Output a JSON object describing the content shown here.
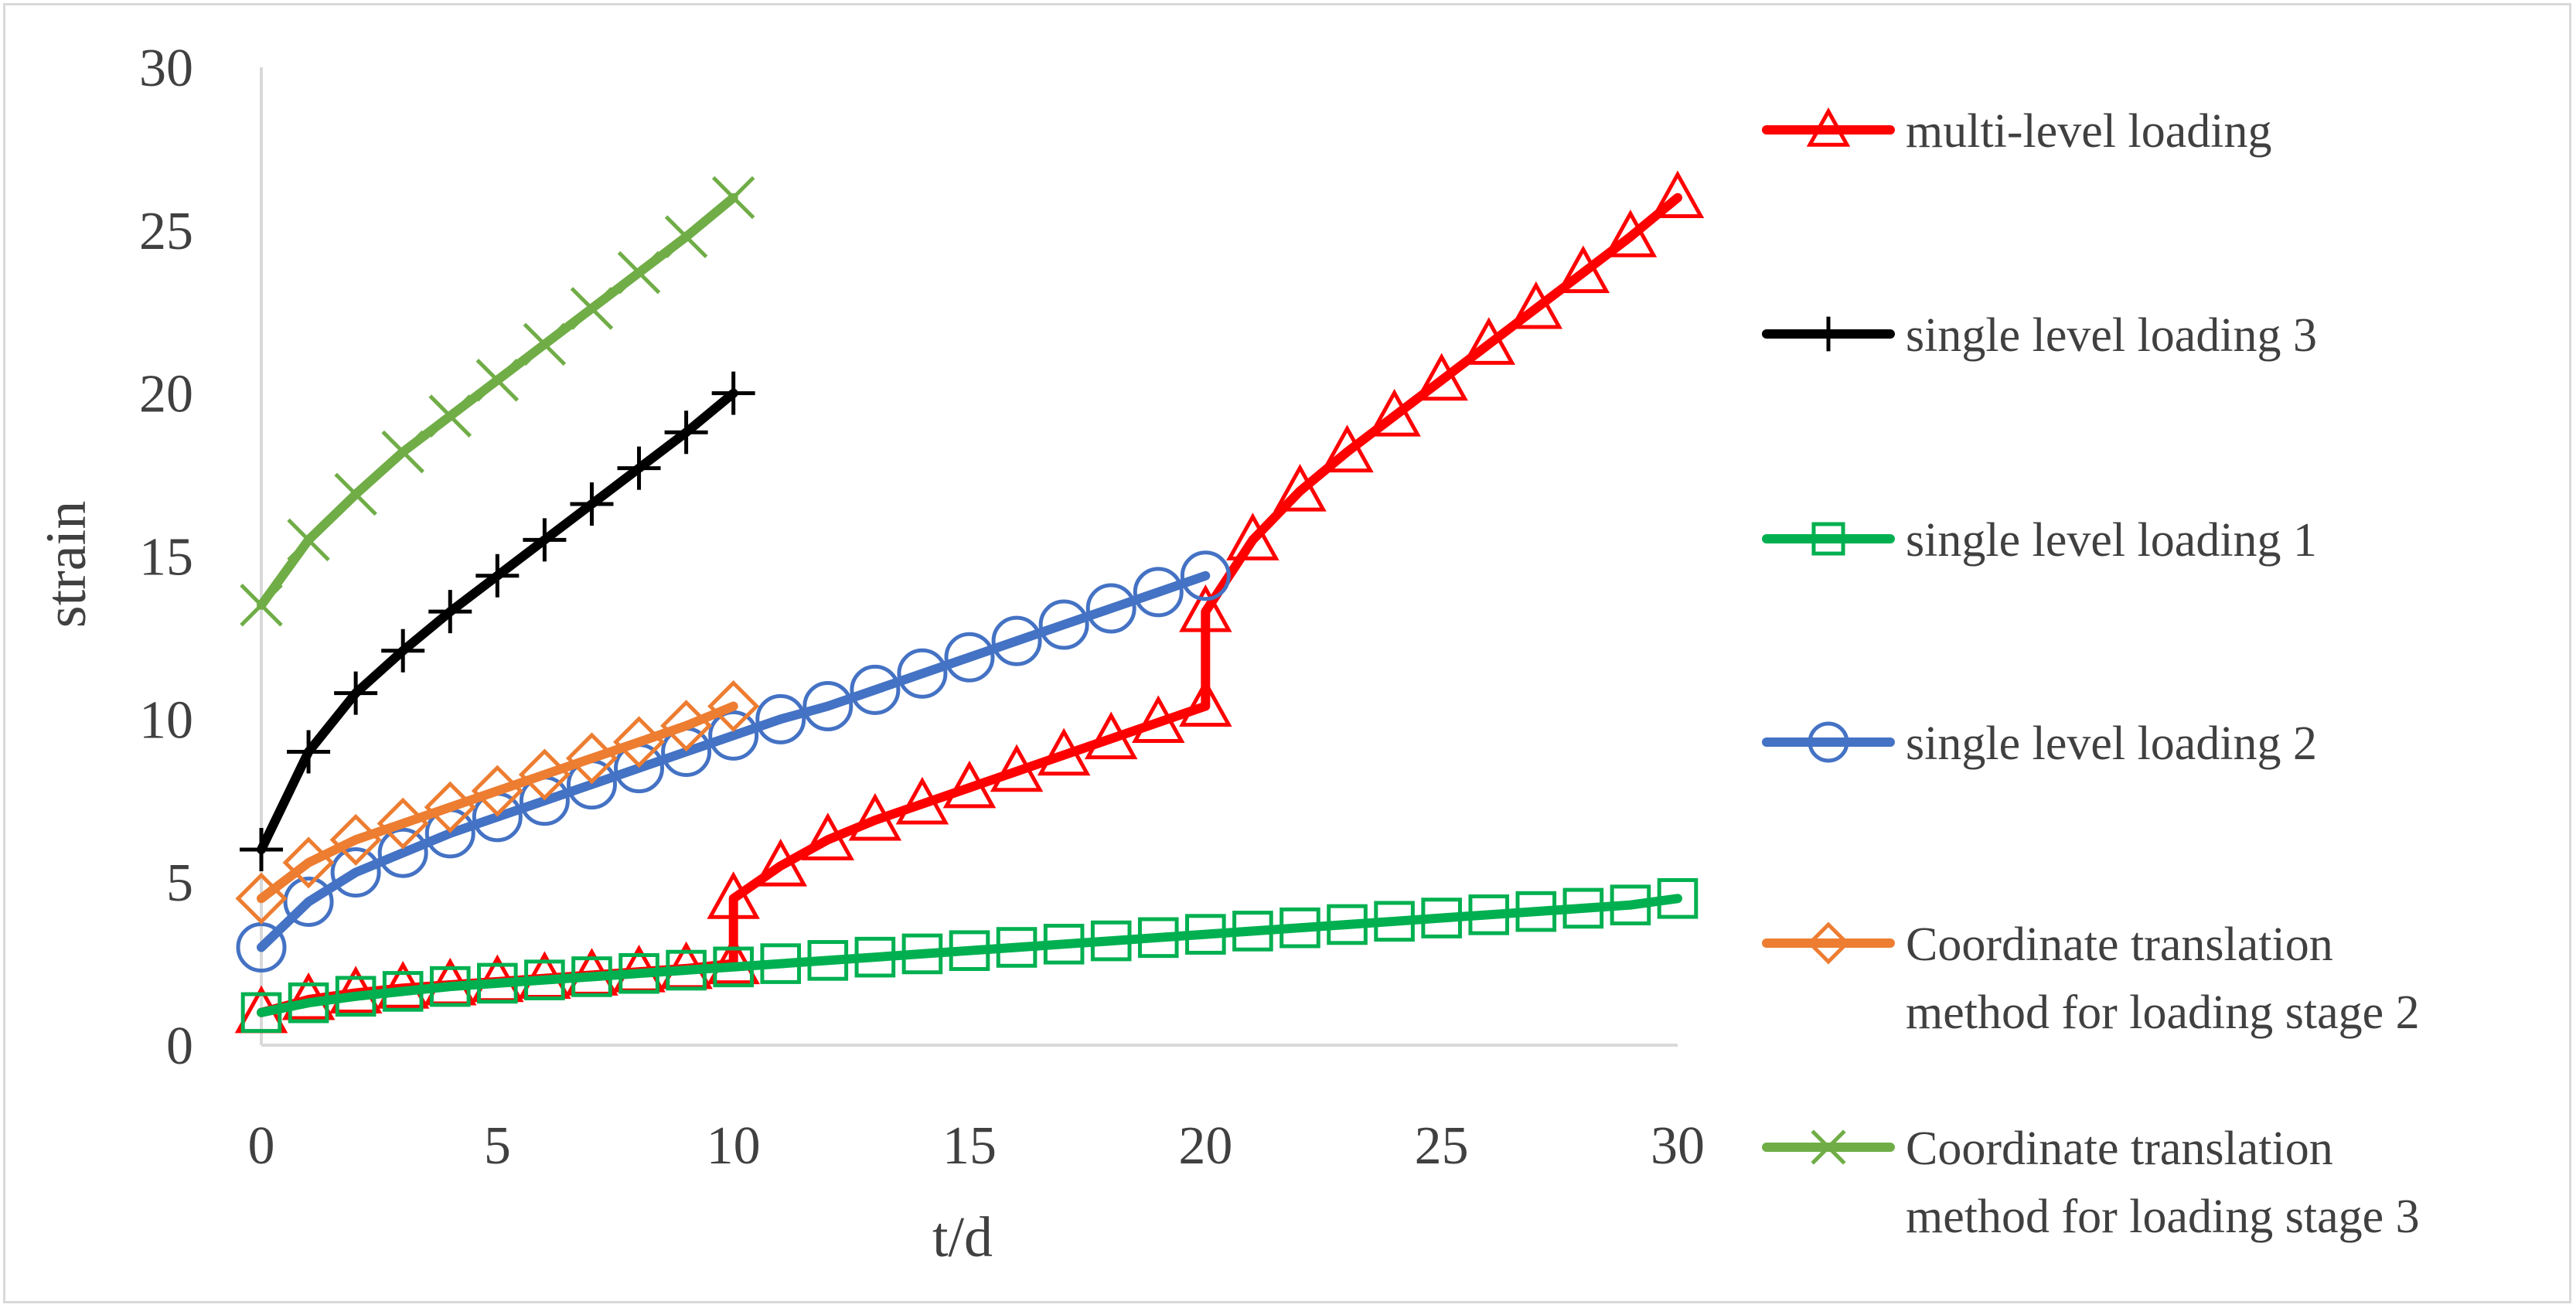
{
  "chart_data": {
    "type": "line",
    "title": "",
    "xlabel": "t/d",
    "ylabel": "strain",
    "xlim": [
      0,
      30
    ],
    "ylim": [
      0,
      30
    ],
    "x_ticks": [
      "0",
      "5",
      "10",
      "15",
      "20",
      "25",
      "30"
    ],
    "y_ticks": [
      "0",
      "5",
      "10",
      "15",
      "20",
      "25",
      "30"
    ],
    "legend_position": "right",
    "grid": false,
    "series": [
      {
        "name": "multi-level loading",
        "color": "#ff0000",
        "marker": "triangle",
        "points": [
          [
            0,
            1
          ],
          [
            1,
            1.4
          ],
          [
            2,
            1.6
          ],
          [
            3,
            1.75
          ],
          [
            4,
            1.85
          ],
          [
            5,
            1.95
          ],
          [
            6,
            2.05
          ],
          [
            7,
            2.15
          ],
          [
            8,
            2.25
          ],
          [
            9,
            2.35
          ],
          [
            10,
            2.5
          ],
          [
            10,
            4.5
          ],
          [
            11,
            5.5
          ],
          [
            12,
            6.3
          ],
          [
            13,
            6.9
          ],
          [
            14,
            7.4
          ],
          [
            15,
            7.9
          ],
          [
            16,
            8.4
          ],
          [
            17,
            8.9
          ],
          [
            18,
            9.4
          ],
          [
            19,
            9.9
          ],
          [
            20,
            10.4
          ],
          [
            20,
            13.3
          ],
          [
            21,
            15.5
          ],
          [
            22,
            17
          ],
          [
            23,
            18.2
          ],
          [
            24,
            19.3
          ],
          [
            25,
            20.4
          ],
          [
            26,
            21.5
          ],
          [
            27,
            22.6
          ],
          [
            28,
            23.7
          ],
          [
            29,
            24.8
          ],
          [
            30,
            26
          ]
        ]
      },
      {
        "name": "single level loading 3",
        "color": "#000000",
        "marker": "plus",
        "points": [
          [
            0,
            6
          ],
          [
            1,
            9
          ],
          [
            2,
            10.8
          ],
          [
            3,
            12.1
          ],
          [
            4,
            13.3
          ],
          [
            5,
            14.4
          ],
          [
            6,
            15.5
          ],
          [
            7,
            16.6
          ],
          [
            8,
            17.7
          ],
          [
            9,
            18.8
          ],
          [
            10,
            20
          ]
        ]
      },
      {
        "name": "single level loading 1",
        "color": "#00b050",
        "marker": "square",
        "points": [
          [
            0,
            1
          ],
          [
            1,
            1.3
          ],
          [
            2,
            1.5
          ],
          [
            3,
            1.65
          ],
          [
            4,
            1.8
          ],
          [
            5,
            1.9
          ],
          [
            6,
            2
          ],
          [
            7,
            2.1
          ],
          [
            8,
            2.2
          ],
          [
            9,
            2.3
          ],
          [
            10,
            2.4
          ],
          [
            11,
            2.5
          ],
          [
            12,
            2.6
          ],
          [
            13,
            2.7
          ],
          [
            14,
            2.8
          ],
          [
            15,
            2.9
          ],
          [
            16,
            3
          ],
          [
            17,
            3.1
          ],
          [
            18,
            3.2
          ],
          [
            19,
            3.3
          ],
          [
            20,
            3.4
          ],
          [
            21,
            3.5
          ],
          [
            22,
            3.6
          ],
          [
            23,
            3.7
          ],
          [
            24,
            3.8
          ],
          [
            25,
            3.9
          ],
          [
            26,
            4
          ],
          [
            27,
            4.1
          ],
          [
            28,
            4.2
          ],
          [
            29,
            4.3
          ],
          [
            30,
            4.5
          ]
        ]
      },
      {
        "name": "single level loading 2",
        "color": "#4472c4",
        "marker": "circle",
        "points": [
          [
            0,
            3
          ],
          [
            1,
            4.4
          ],
          [
            2,
            5.3
          ],
          [
            3,
            5.9
          ],
          [
            4,
            6.5
          ],
          [
            5,
            7
          ],
          [
            6,
            7.5
          ],
          [
            7,
            8
          ],
          [
            8,
            8.5
          ],
          [
            9,
            9
          ],
          [
            10,
            9.5
          ],
          [
            11,
            10
          ],
          [
            12,
            10.4
          ],
          [
            13,
            10.9
          ],
          [
            14,
            11.4
          ],
          [
            15,
            11.9
          ],
          [
            16,
            12.4
          ],
          [
            17,
            12.9
          ],
          [
            18,
            13.4
          ],
          [
            19,
            13.9
          ],
          [
            20,
            14.4
          ]
        ]
      },
      {
        "name": "Coordinate translation method for loading stage 2",
        "name_lines": [
          "Coordinate translation",
          "method for loading stage 2"
        ],
        "color": "#ed7d31",
        "marker": "diamond",
        "points": [
          [
            0,
            4.5
          ],
          [
            1,
            5.6
          ],
          [
            2,
            6.3
          ],
          [
            3,
            6.8
          ],
          [
            4,
            7.3
          ],
          [
            5,
            7.8
          ],
          [
            6,
            8.3
          ],
          [
            7,
            8.8
          ],
          [
            8,
            9.3
          ],
          [
            9,
            9.8
          ],
          [
            10,
            10.4
          ]
        ]
      },
      {
        "name": "Coordinate translation method for loading stage 3",
        "name_lines": [
          "Coordinate translation",
          "method for loading stage 3"
        ],
        "color": "#70ad47",
        "marker": "x",
        "points": [
          [
            0,
            13.5
          ],
          [
            1,
            15.5
          ],
          [
            2,
            16.9
          ],
          [
            3,
            18.2
          ],
          [
            4,
            19.3
          ],
          [
            5,
            20.4
          ],
          [
            6,
            21.5
          ],
          [
            7,
            22.6
          ],
          [
            8,
            23.7
          ],
          [
            9,
            24.8
          ],
          [
            10,
            26
          ]
        ]
      }
    ]
  }
}
